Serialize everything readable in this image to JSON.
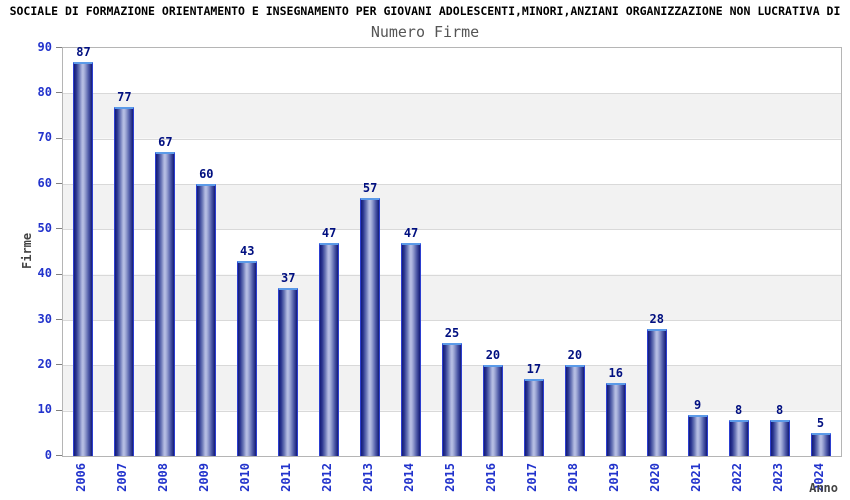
{
  "chart_data": {
    "type": "bar",
    "title": "SOCIALE DI FORMAZIONE ORIENTAMENTO E INSEGNAMENTO PER GIOVANI ADOLESCENTI,MINORI,ANZIANI ORGANIZZAZIONE NON LUCRATIVA DI",
    "subtitle": "Numero Firme",
    "xlabel": "Anno",
    "ylabel": "Firme",
    "categories": [
      "2006",
      "2007",
      "2008",
      "2009",
      "2010",
      "2011",
      "2012",
      "2013",
      "2014",
      "2015",
      "2016",
      "2017",
      "2018",
      "2019",
      "2020",
      "2021",
      "2022",
      "2023",
      "2024"
    ],
    "values": [
      87,
      77,
      67,
      60,
      43,
      37,
      47,
      57,
      47,
      25,
      20,
      17,
      20,
      16,
      28,
      9,
      8,
      8,
      5
    ],
    "ylim": [
      0,
      90
    ],
    "yticks": [
      0,
      10,
      20,
      30,
      40,
      50,
      60,
      70,
      80,
      90
    ],
    "grid": true,
    "legend": "none",
    "plot_background": "alternating horizontal white/gray bands",
    "x_tick_rotation": 90,
    "colors": {
      "tick_label": "#2233cc",
      "value_label": "#000f80",
      "band": "#f2f2f2",
      "gridline": "#d9d9d9",
      "bar_edge": "#141c77",
      "bar_mid": "#b8c0e4",
      "bar_outline": "#2c3ed0",
      "bar_cap": "#5b9ae8",
      "axis_title": "#444444",
      "subtitle": "#555555"
    }
  }
}
